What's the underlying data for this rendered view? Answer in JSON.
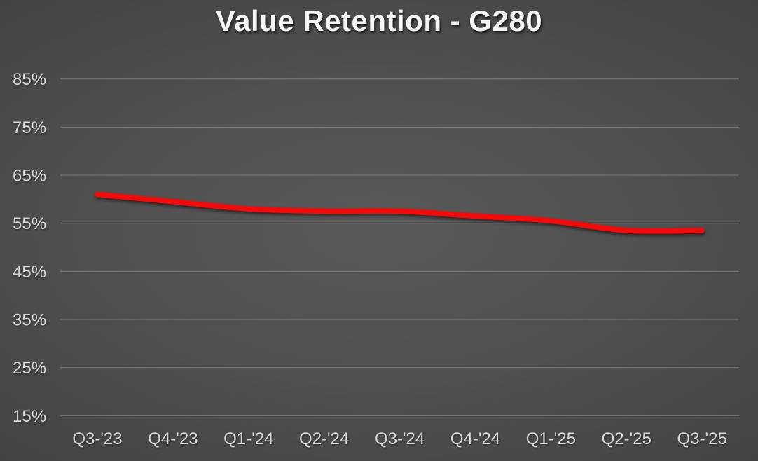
{
  "title": "Value Retention - G280",
  "chart_data": {
    "type": "line",
    "title": "Value Retention - G280",
    "categories": [
      "Q3-'23",
      "Q4-'23",
      "Q1-'24",
      "Q2-'24",
      "Q3-'24",
      "Q4-'24",
      "Q1-'25",
      "Q2-'25",
      "Q3-'25"
    ],
    "series": [
      {
        "name": "G280 value retention",
        "values": [
          61,
          59.5,
          58,
          57.5,
          57.5,
          56.5,
          55.5,
          53.5,
          53.5
        ]
      }
    ],
    "unit": "%",
    "ylim": [
      15,
      85
    ],
    "ytick_step": 10,
    "ytick_labels": [
      "15%",
      "25%",
      "35%",
      "45%",
      "55%",
      "65%",
      "75%",
      "85%"
    ],
    "xlabel": "",
    "ylabel": "",
    "grid": true,
    "legend": "none",
    "smooth": true
  },
  "colors": {
    "line": "#fc0707",
    "gridline": "rgba(255,255,255,0.20)",
    "axis_text": "#d9d9d9",
    "title_text": "#f5f5f5",
    "background_center": "#595959",
    "background_edge": "#232323"
  }
}
